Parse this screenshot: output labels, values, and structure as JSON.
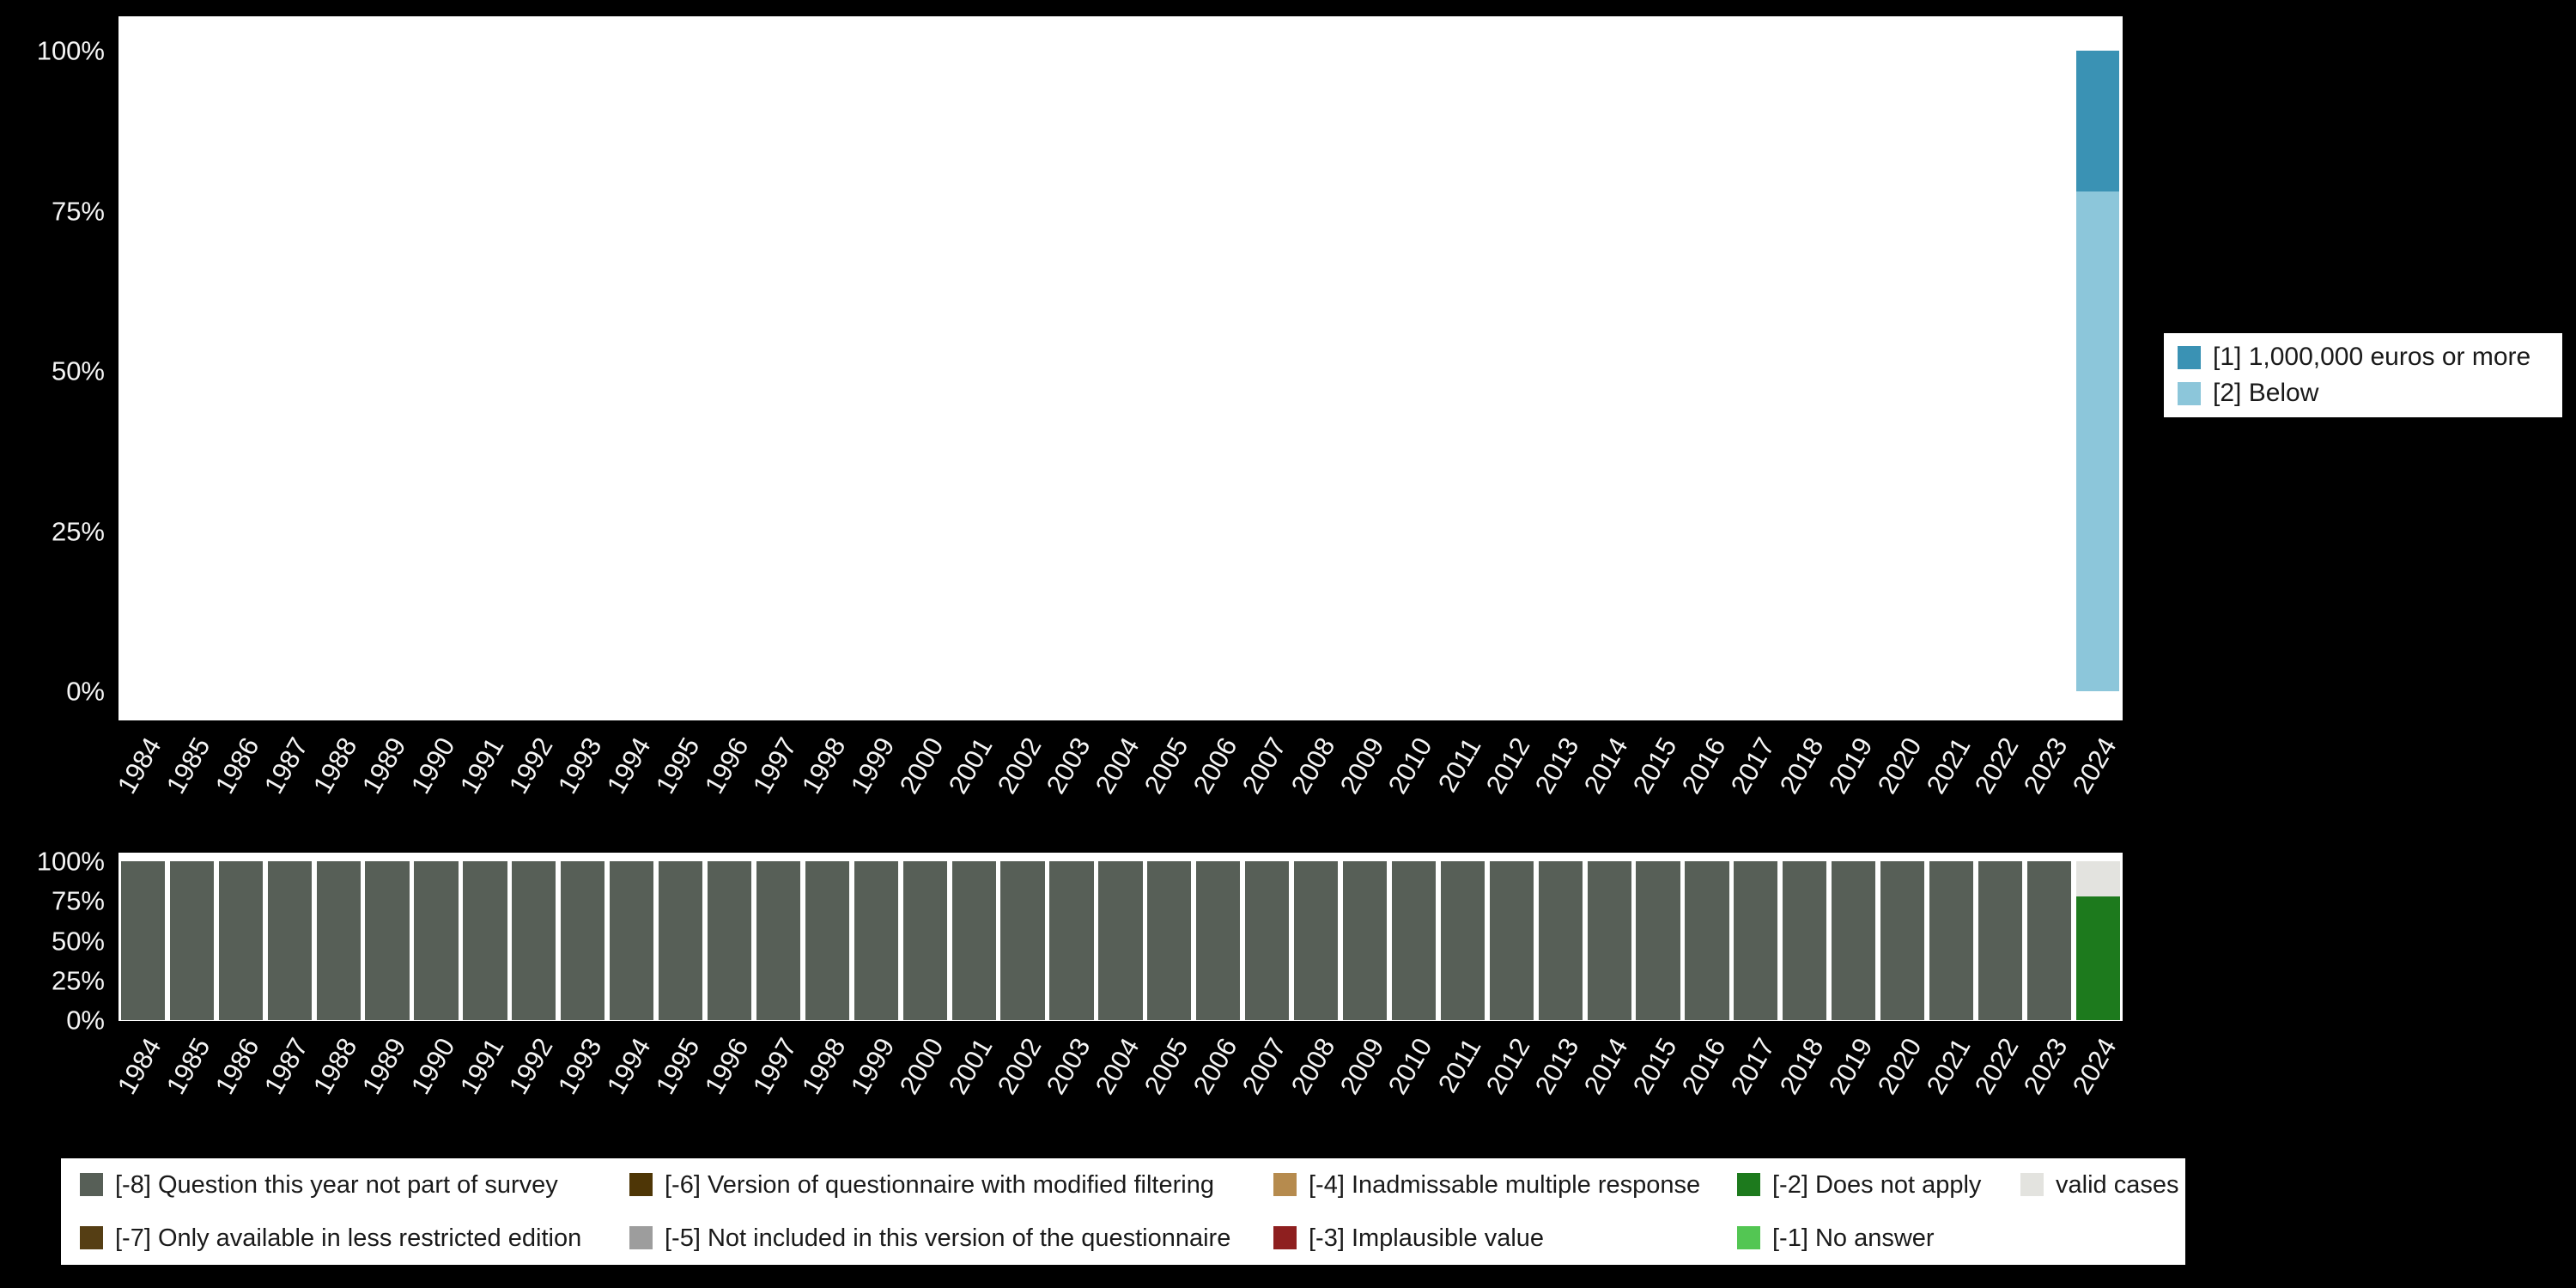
{
  "colors": {
    "page_background": "#000000",
    "plot_background": "#ffffff",
    "axis_text": "#f5f5f5",
    "legend_background": "#ffffff",
    "legend_text": "#1a1a1a"
  },
  "chart_data": [
    {
      "id": "distribution-by-year",
      "type": "bar",
      "stacked": true,
      "grid": false,
      "legend_position": "right",
      "ylim": [
        0,
        100
      ],
      "ytick_values": [
        100,
        75,
        50,
        25,
        0
      ],
      "ytick_labels": [
        "100%",
        "75%",
        "50%",
        "25%",
        "0%"
      ],
      "categories": [
        "1984",
        "1985",
        "1986",
        "1987",
        "1988",
        "1989",
        "1990",
        "1991",
        "1992",
        "1993",
        "1994",
        "1995",
        "1996",
        "1997",
        "1998",
        "1999",
        "2000",
        "2001",
        "2002",
        "2003",
        "2004",
        "2005",
        "2006",
        "2007",
        "2008",
        "2009",
        "2010",
        "2011",
        "2012",
        "2013",
        "2014",
        "2015",
        "2016",
        "2017",
        "2018",
        "2019",
        "2020",
        "2021",
        "2022",
        "2023",
        "2024"
      ],
      "series": [
        {
          "name": "[1] 1,000,000 euros or more",
          "color": "#3a92b4",
          "values": [
            0,
            0,
            0,
            0,
            0,
            0,
            0,
            0,
            0,
            0,
            0,
            0,
            0,
            0,
            0,
            0,
            0,
            0,
            0,
            0,
            0,
            0,
            0,
            0,
            0,
            0,
            0,
            0,
            0,
            0,
            0,
            0,
            0,
            0,
            0,
            0,
            0,
            0,
            0,
            0,
            22
          ]
        },
        {
          "name": "[2] Below",
          "color": "#8cc6da",
          "values": [
            0,
            0,
            0,
            0,
            0,
            0,
            0,
            0,
            0,
            0,
            0,
            0,
            0,
            0,
            0,
            0,
            0,
            0,
            0,
            0,
            0,
            0,
            0,
            0,
            0,
            0,
            0,
            0,
            0,
            0,
            0,
            0,
            0,
            0,
            0,
            0,
            0,
            0,
            0,
            0,
            78
          ]
        }
      ]
    },
    {
      "id": "missing-values-by-year",
      "type": "bar",
      "stacked": true,
      "grid": false,
      "legend_position": "bottom",
      "ylim": [
        0,
        100
      ],
      "ytick_values": [
        100,
        75,
        50,
        25,
        0
      ],
      "ytick_labels": [
        "100%",
        "75%",
        "50%",
        "25%",
        "0%"
      ],
      "categories": [
        "1984",
        "1985",
        "1986",
        "1987",
        "1988",
        "1989",
        "1990",
        "1991",
        "1992",
        "1993",
        "1994",
        "1995",
        "1996",
        "1997",
        "1998",
        "1999",
        "2000",
        "2001",
        "2002",
        "2003",
        "2004",
        "2005",
        "2006",
        "2007",
        "2008",
        "2009",
        "2010",
        "2011",
        "2012",
        "2013",
        "2014",
        "2015",
        "2016",
        "2017",
        "2018",
        "2019",
        "2020",
        "2021",
        "2022",
        "2023",
        "2024"
      ],
      "series": [
        {
          "name": "[-8] Question this year not part of survey",
          "color": "#575f57",
          "values": [
            100,
            100,
            100,
            100,
            100,
            100,
            100,
            100,
            100,
            100,
            100,
            100,
            100,
            100,
            100,
            100,
            100,
            100,
            100,
            100,
            100,
            100,
            100,
            100,
            100,
            100,
            100,
            100,
            100,
            100,
            100,
            100,
            100,
            100,
            100,
            100,
            100,
            100,
            100,
            100,
            0
          ]
        },
        {
          "name": "valid cases",
          "color": "#e3e3df",
          "values": [
            0,
            0,
            0,
            0,
            0,
            0,
            0,
            0,
            0,
            0,
            0,
            0,
            0,
            0,
            0,
            0,
            0,
            0,
            0,
            0,
            0,
            0,
            0,
            0,
            0,
            0,
            0,
            0,
            0,
            0,
            0,
            0,
            0,
            0,
            0,
            0,
            0,
            0,
            0,
            0,
            22
          ]
        },
        {
          "name": "[-2] Does not apply",
          "color": "#1d7a1d",
          "values": [
            0,
            0,
            0,
            0,
            0,
            0,
            0,
            0,
            0,
            0,
            0,
            0,
            0,
            0,
            0,
            0,
            0,
            0,
            0,
            0,
            0,
            0,
            0,
            0,
            0,
            0,
            0,
            0,
            0,
            0,
            0,
            0,
            0,
            0,
            0,
            0,
            0,
            0,
            0,
            0,
            78
          ]
        }
      ],
      "legend_items": [
        {
          "label": "[-8] Question this year not part of survey",
          "color": "#575f57"
        },
        {
          "label": "[-7] Only available in less restricted edition",
          "color": "#553e14"
        },
        {
          "label": "[-6] Version of questionnaire with modified filtering",
          "color": "#4e3606"
        },
        {
          "label": "[-5] Not included in this version of the questionnaire",
          "color": "#9d9d9d"
        },
        {
          "label": "[-4] Inadmissable multiple response",
          "color": "#b68b4e"
        },
        {
          "label": "[-3] Implausible value",
          "color": "#8e1f1f"
        },
        {
          "label": "[-2] Does not apply",
          "color": "#1d7a1d"
        },
        {
          "label": "[-1] No answer",
          "color": "#53c653"
        },
        {
          "label": "valid cases",
          "color": "#e3e3df"
        }
      ]
    }
  ]
}
